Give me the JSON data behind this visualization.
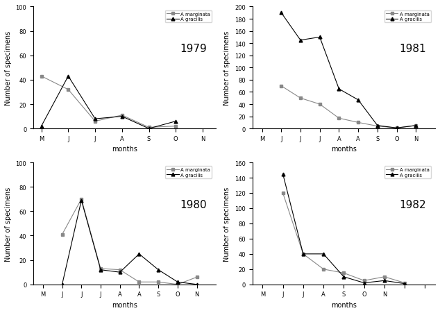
{
  "subplots": [
    {
      "year": "1979",
      "row": 0,
      "col": 0,
      "m_x": [
        0,
        1,
        2,
        3,
        4,
        5
      ],
      "marginata": [
        43,
        32,
        6,
        11,
        1,
        2
      ],
      "g_x": [
        0,
        1,
        2,
        3,
        4,
        5
      ],
      "gracilis": [
        2,
        43,
        8,
        10,
        0,
        6
      ],
      "ylim": [
        0,
        100
      ],
      "yticks": [
        0,
        20,
        40,
        60,
        80,
        100
      ],
      "xtick_pos": [
        0,
        1,
        2,
        3,
        4,
        5,
        6
      ],
      "xtick_labels": [
        "M",
        "J",
        "J",
        "A",
        "S",
        "O",
        "N"
      ],
      "xlim": [
        -0.3,
        6.5
      ]
    },
    {
      "year": "1981",
      "row": 0,
      "col": 1,
      "m_x": [
        1,
        2,
        3,
        4,
        5,
        6,
        7,
        8
      ],
      "marginata": [
        70,
        50,
        40,
        17,
        10,
        4,
        1,
        5
      ],
      "g_x": [
        1,
        2,
        3,
        4,
        5,
        6,
        7,
        8
      ],
      "gracilis": [
        190,
        145,
        150,
        65,
        47,
        5,
        1,
        5
      ],
      "ylim": [
        0,
        200
      ],
      "yticks": [
        0,
        20,
        40,
        60,
        80,
        100,
        120,
        140,
        160,
        180,
        200
      ],
      "xtick_pos": [
        0,
        1,
        2,
        3,
        4,
        5,
        6,
        7,
        8
      ],
      "xtick_labels": [
        "M",
        "J",
        "J",
        "J",
        "A",
        "A",
        "S",
        "O",
        "N"
      ],
      "xlim": [
        -0.5,
        9
      ]
    },
    {
      "year": "1980",
      "row": 1,
      "col": 0,
      "m_x": [
        1,
        2,
        3,
        4,
        5,
        6,
        7,
        8
      ],
      "marginata": [
        41,
        70,
        13,
        12,
        2,
        2,
        0,
        6
      ],
      "g_x": [
        1,
        2,
        3,
        4,
        5,
        6,
        7,
        8
      ],
      "gracilis": [
        0,
        69,
        12,
        10,
        25,
        12,
        2,
        0
      ],
      "ylim": [
        0,
        100
      ],
      "yticks": [
        0,
        20,
        40,
        60,
        80,
        100
      ],
      "xtick_pos": [
        0,
        1,
        2,
        3,
        4,
        5,
        6,
        7,
        8
      ],
      "xtick_labels": [
        "M",
        "J",
        "J",
        "J",
        "A",
        "A",
        "S",
        "O",
        "N"
      ],
      "xlim": [
        -0.5,
        9
      ]
    },
    {
      "year": "1982",
      "row": 1,
      "col": 1,
      "m_x": [
        1,
        2,
        3,
        4,
        5,
        6,
        7
      ],
      "marginata": [
        120,
        40,
        20,
        15,
        5,
        10,
        2
      ],
      "g_x": [
        1,
        2,
        3,
        4,
        5,
        6,
        7
      ],
      "gracilis": [
        145,
        40,
        40,
        10,
        2,
        5,
        1
      ],
      "ylim": [
        0,
        160
      ],
      "yticks": [
        0,
        20,
        40,
        60,
        80,
        100,
        120,
        140,
        160
      ],
      "xtick_pos": [
        0,
        1,
        2,
        3,
        4,
        5,
        6,
        7,
        8
      ],
      "xtick_labels": [
        "M",
        "J",
        "J",
        "A",
        "S",
        "O",
        "N",
        "",
        ""
      ],
      "xlim": [
        -0.5,
        8.5
      ]
    }
  ],
  "line_marginata_color": "#888888",
  "line_gracilis_color": "#000000",
  "marker_marginata": "s",
  "marker_gracilis": "^",
  "legend_marginata": "A marginata",
  "legend_gracilis": "A gracilis",
  "xlabel": "months",
  "ylabel": "Number of specimens",
  "figure_bg": "#ffffff"
}
